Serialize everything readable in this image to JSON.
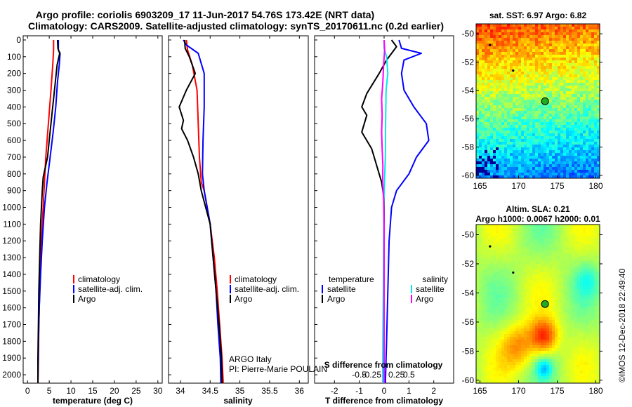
{
  "title_line1": "Argo profile: coriolis 6903209_17 11-Jun-2017 54.76S 173.42E (NRT data)",
  "title_line2": "Climatology: CARS2009. Satellite-adjusted climatology: synTS_20170611.nc (0.2d earlier)",
  "credit_argo": "ARGO Italy",
  "credit_pi": "PI: Pierre-Marie POULAIN",
  "timestamp": "©IMOS 12-Dec-2018 22:49:40",
  "colors": {
    "climatology": "#ff0000",
    "satellite": "#0000ff",
    "argo": "#000000",
    "sal_sat": "#00e8e8",
    "sal_argo": "#ff00ff",
    "marker": "#22aa22"
  },
  "chart_data": [
    {
      "type": "line",
      "name": "temperature",
      "xlabel": "temperature (deg C)",
      "xlim": [
        -1,
        31
      ],
      "ylim": [
        2050,
        0
      ],
      "xticks": [
        0,
        5,
        10,
        15,
        20,
        25,
        30
      ],
      "yticks": [
        0,
        100,
        200,
        300,
        400,
        500,
        600,
        700,
        800,
        900,
        1000,
        1100,
        1200,
        1300,
        1400,
        1500,
        1600,
        1700,
        1800,
        1900,
        2000
      ],
      "legend": [
        "climatology",
        "satellite-adj. clim.",
        "Argo"
      ],
      "series": [
        {
          "name": "climatology",
          "color": "#ff0000",
          "points": [
            [
              6.0,
              0
            ],
            [
              6.0,
              60
            ],
            [
              5.8,
              150
            ],
            [
              5.4,
              300
            ],
            [
              4.8,
              500
            ],
            [
              4.2,
              700
            ],
            [
              3.8,
              900
            ],
            [
              3.4,
              1100
            ],
            [
              3.0,
              1300
            ],
            [
              2.8,
              1500
            ],
            [
              2.6,
              1700
            ],
            [
              2.5,
              1900
            ],
            [
              2.4,
              2050
            ]
          ]
        },
        {
          "name": "satellite-adj. clim.",
          "color": "#0000ff",
          "points": [
            [
              7.1,
              0
            ],
            [
              7.1,
              60
            ],
            [
              7.5,
              80
            ],
            [
              7.3,
              150
            ],
            [
              6.9,
              250
            ],
            [
              6.5,
              400
            ],
            [
              5.9,
              550
            ],
            [
              5.2,
              700
            ],
            [
              4.5,
              850
            ],
            [
              3.9,
              1000
            ],
            [
              3.4,
              1200
            ],
            [
              3.0,
              1400
            ],
            [
              2.7,
              1600
            ],
            [
              2.5,
              1800
            ],
            [
              2.4,
              2050
            ]
          ]
        },
        {
          "name": "Argo",
          "color": "#000000",
          "points": [
            [
              6.9,
              0
            ],
            [
              7.0,
              50
            ],
            [
              7.4,
              80
            ],
            [
              6.8,
              150
            ],
            [
              6.2,
              300
            ],
            [
              5.6,
              450
            ],
            [
              5.0,
              600
            ],
            [
              4.6,
              700
            ],
            [
              3.6,
              820
            ],
            [
              3.4,
              900
            ],
            [
              3.0,
              1100
            ],
            [
              2.8,
              1300
            ],
            [
              2.6,
              1500
            ],
            [
              2.5,
              1700
            ],
            [
              2.4,
              1900
            ],
            [
              2.4,
              2050
            ]
          ]
        }
      ]
    },
    {
      "type": "line",
      "name": "salinity",
      "xlabel": "salinity",
      "xlim": [
        33.8,
        36.15
      ],
      "ylim": [
        2050,
        0
      ],
      "xticks": [
        34,
        34.5,
        35,
        35.5,
        36
      ],
      "legend": [
        "climatology",
        "satellite-adj. clim.",
        "Argo"
      ],
      "series": [
        {
          "name": "climatology",
          "color": "#ff0000",
          "points": [
            [
              34.1,
              0
            ],
            [
              34.12,
              60
            ],
            [
              34.2,
              150
            ],
            [
              34.28,
              300
            ],
            [
              34.3,
              500
            ],
            [
              34.32,
              700
            ],
            [
              34.35,
              850
            ],
            [
              34.4,
              900
            ],
            [
              34.5,
              1100
            ],
            [
              34.57,
              1300
            ],
            [
              34.62,
              1500
            ],
            [
              34.66,
              1700
            ],
            [
              34.7,
              1900
            ],
            [
              34.72,
              2050
            ]
          ]
        },
        {
          "name": "satellite-adj. clim.",
          "color": "#0000ff",
          "points": [
            [
              34.05,
              0
            ],
            [
              34.1,
              30
            ],
            [
              34.3,
              80
            ],
            [
              34.4,
              200
            ],
            [
              34.4,
              400
            ],
            [
              34.38,
              600
            ],
            [
              34.37,
              800
            ],
            [
              34.4,
              900
            ],
            [
              34.5,
              1100
            ],
            [
              34.55,
              1300
            ],
            [
              34.6,
              1500
            ],
            [
              34.63,
              1700
            ],
            [
              34.67,
              1900
            ],
            [
              34.68,
              2050
            ]
          ]
        },
        {
          "name": "Argo",
          "color": "#000000",
          "points": [
            [
              34.07,
              0
            ],
            [
              34.08,
              50
            ],
            [
              34.15,
              100
            ],
            [
              34.25,
              200
            ],
            [
              34.1,
              300
            ],
            [
              33.98,
              400
            ],
            [
              34.05,
              480
            ],
            [
              34.02,
              530
            ],
            [
              34.12,
              600
            ],
            [
              34.22,
              700
            ],
            [
              34.3,
              800
            ],
            [
              34.35,
              900
            ],
            [
              34.5,
              1100
            ],
            [
              34.55,
              1300
            ],
            [
              34.6,
              1500
            ],
            [
              34.65,
              1700
            ],
            [
              34.69,
              1900
            ],
            [
              34.7,
              2050
            ]
          ]
        }
      ]
    },
    {
      "type": "line",
      "name": "difference_from_climatology",
      "xlabel": "T difference from climatology",
      "xlabel_top": "S difference from climatology",
      "xlim": [
        -2.8,
        2.8
      ],
      "ylim": [
        2050,
        0
      ],
      "xticks": [
        -2,
        -1,
        0,
        1,
        2
      ],
      "xticks_salinity": [
        "-0.5",
        "-0.25",
        "0",
        "0.25",
        "0.5"
      ],
      "legend_temperature": {
        "heading": "temperature",
        "entries": [
          "satellite",
          "Argo"
        ]
      },
      "legend_salinity": {
        "heading": "salinity",
        "entries": [
          "satellite",
          "Argo"
        ]
      },
      "series": [
        {
          "name": "T satellite",
          "color": "#0000ff",
          "points": [
            [
              0.6,
              0
            ],
            [
              0.7,
              50
            ],
            [
              1.5,
              80
            ],
            [
              0.8,
              120
            ],
            [
              0.7,
              200
            ],
            [
              0.8,
              300
            ],
            [
              1.2,
              400
            ],
            [
              1.7,
              500
            ],
            [
              1.8,
              600
            ],
            [
              1.3,
              700
            ],
            [
              1.0,
              800
            ],
            [
              0.5,
              900
            ],
            [
              0.3,
              1000
            ],
            [
              0.2,
              1200
            ],
            [
              0.15,
              1500
            ],
            [
              0.1,
              1800
            ],
            [
              0.05,
              2050
            ]
          ]
        },
        {
          "name": "T Argo",
          "color": "#000000",
          "points": [
            [
              0.3,
              0
            ],
            [
              0.5,
              40
            ],
            [
              0.1,
              120
            ],
            [
              -0.2,
              200
            ],
            [
              -0.7,
              320
            ],
            [
              -0.9,
              400
            ],
            [
              -0.7,
              450
            ],
            [
              -0.9,
              550
            ],
            [
              -0.5,
              650
            ],
            [
              -0.3,
              750
            ],
            [
              -0.1,
              850
            ],
            [
              0.0,
              950
            ],
            [
              0.0,
              1100
            ],
            [
              0.0,
              2050
            ]
          ]
        },
        {
          "name": "S satellite",
          "color": "#00e8e8",
          "points": [
            [
              0.0,
              0
            ],
            [
              0.0,
              50
            ],
            [
              0.1,
              100
            ],
            [
              0.15,
              200
            ],
            [
              0.08,
              300
            ],
            [
              0.06,
              500
            ],
            [
              0.05,
              700
            ],
            [
              0.0,
              900
            ],
            [
              -0.02,
              1200
            ],
            [
              -0.03,
              1500
            ],
            [
              -0.05,
              1800
            ],
            [
              -0.06,
              2050
            ]
          ]
        },
        {
          "name": "S Argo",
          "color": "#ff00ff",
          "points": [
            [
              0.0,
              0
            ],
            [
              0.02,
              60
            ],
            [
              -0.02,
              150
            ],
            [
              -0.05,
              250
            ],
            [
              -0.1,
              350
            ],
            [
              -0.08,
              450
            ],
            [
              -0.1,
              550
            ],
            [
              -0.08,
              650
            ],
            [
              -0.05,
              750
            ],
            [
              -0.06,
              850
            ],
            [
              -0.02,
              950
            ],
            [
              0.0,
              1100
            ],
            [
              0.0,
              2050
            ]
          ]
        }
      ]
    },
    {
      "type": "heatmap",
      "name": "sst_map",
      "title": "sat. SST: 6.97 Argo: 6.82",
      "xlim": [
        164.5,
        180.5
      ],
      "ylim": [
        -60.2,
        -49.3
      ],
      "xticks": [
        165,
        170,
        175,
        180
      ],
      "yticks": [
        -50,
        -52,
        -54,
        -56,
        -58,
        -60
      ],
      "argo_position": [
        173.42,
        -54.76
      ]
    },
    {
      "type": "heatmap",
      "name": "sla_map",
      "title": "Altim. SLA: 0.21",
      "subtitle": "Argo h1000: 0.0067 h2000: 0.01",
      "xlim": [
        164.5,
        180.5
      ],
      "ylim": [
        -60.2,
        -49.3
      ],
      "xticks": [
        165,
        170,
        175,
        180
      ],
      "yticks": [
        -50,
        -52,
        -54,
        -56,
        -58,
        -60
      ],
      "argo_position": [
        173.42,
        -54.76
      ]
    }
  ]
}
